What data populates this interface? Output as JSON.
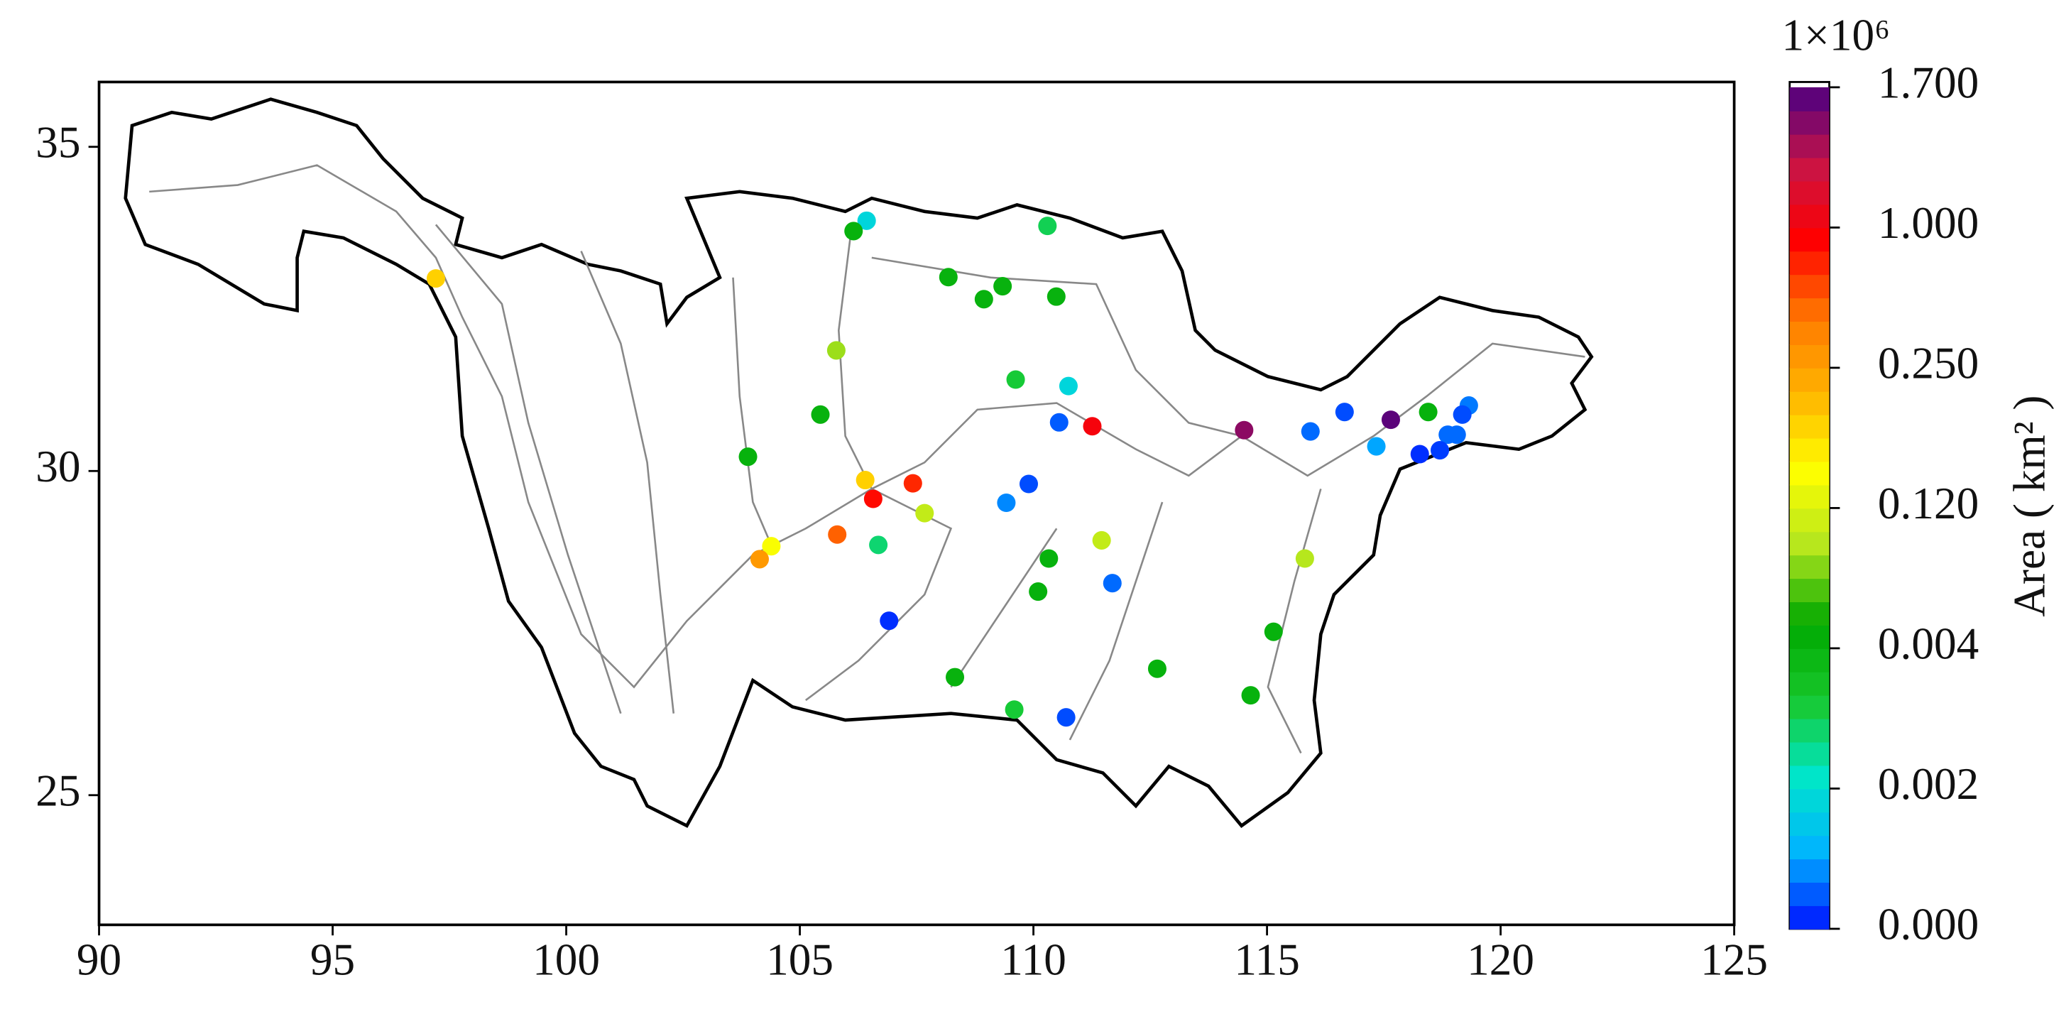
{
  "chart_data": {
    "type": "scatter",
    "x": [
      97.21,
      106.43,
      106.15,
      110.3,
      108.18,
      109.34,
      108.94,
      110.49,
      105.78,
      109.62,
      110.75,
      105.44,
      103.89,
      110.55,
      111.26,
      114.51,
      115.93,
      116.66,
      117.65,
      118.45,
      119.32,
      119.18,
      119.06,
      118.87,
      118.7,
      118.27,
      117.34,
      106.4,
      106.57,
      107.42,
      107.67,
      109.9,
      109.42,
      105.8,
      106.68,
      104.39,
      104.14,
      111.46,
      110.33,
      111.69,
      110.1,
      115.81,
      106.91,
      115.14,
      112.65,
      108.32,
      114.65,
      109.59,
      110.7
    ],
    "y": [
      32.97,
      33.86,
      33.7,
      33.78,
      32.99,
      32.85,
      32.65,
      32.69,
      31.86,
      31.41,
      31.31,
      30.87,
      30.22,
      30.75,
      30.69,
      30.63,
      30.61,
      30.91,
      30.79,
      30.91,
      31.01,
      30.87,
      30.56,
      30.56,
      30.32,
      30.26,
      30.38,
      29.86,
      29.57,
      29.81,
      29.35,
      29.8,
      29.51,
      29.02,
      28.86,
      28.84,
      28.64,
      28.93,
      28.65,
      28.27,
      28.14,
      28.65,
      27.69,
      27.52,
      26.95,
      26.82,
      26.54,
      26.32,
      26.2
    ],
    "c": [
      0.2,
      0.0018,
      0.006,
      0.003,
      0.005,
      0.005,
      0.005,
      0.005,
      0.08,
      0.0032,
      0.0018,
      0.005,
      0.006,
      0.0005,
      1.0,
      1.5,
      0.0006,
      0.0004,
      1.65,
      0.006,
      0.0007,
      0.0004,
      0.0006,
      0.0006,
      0.0003,
      0.0002,
      0.001,
      0.2,
      0.9,
      0.8,
      0.1,
      0.0004,
      0.0008,
      0.6,
      0.0028,
      0.15,
      0.3,
      0.1,
      0.006,
      0.0006,
      0.007,
      0.09,
      0.0002,
      0.006,
      0.006,
      0.005,
      0.006,
      0.0032,
      0.0004
    ],
    "xlim": [
      90,
      125
    ],
    "ylim": [
      23,
      36
    ],
    "xticks": [
      90,
      95,
      100,
      105,
      110,
      115,
      120,
      125
    ],
    "yticks": [
      25,
      30,
      35
    ],
    "colorbar_label": "Area ( km² )",
    "colorbar_multiplier": "1×10⁶",
    "colorbar_ticks": [
      {
        "value": 0,
        "label": "0.000"
      },
      {
        "value": 0.002,
        "label": "0.002"
      },
      {
        "value": 0.004,
        "label": "0.004"
      },
      {
        "value": 0.12,
        "label": "0.120"
      },
      {
        "value": 0.25,
        "label": "0.250"
      },
      {
        "value": 1,
        "label": "1.000"
      },
      {
        "value": 1.7,
        "label": "1.700"
      }
    ],
    "colormap": [
      "#0010ff",
      "#00b4ff",
      "#00e6c8",
      "#18c82c",
      "#00a800",
      "#b4e61e",
      "#ffff00",
      "#ffb400",
      "#ff7800",
      "#ff0000",
      "#c81446",
      "#4b0082"
    ]
  }
}
